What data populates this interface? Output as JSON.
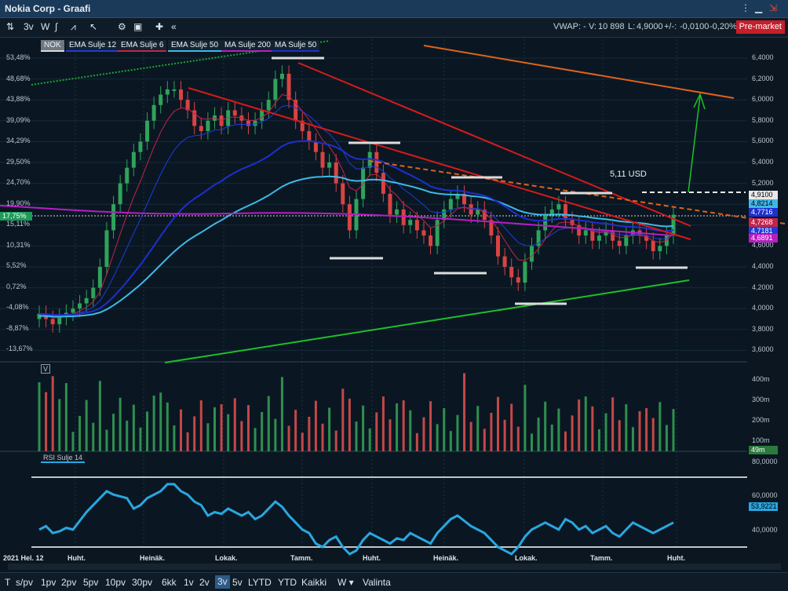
{
  "window": {
    "title": "Nokia Corp - Graafi"
  },
  "toolbar": {
    "period_3v": "3v",
    "period_w": "W",
    "vwap_label": "VWAP: -",
    "volume_label": "V:",
    "volume_value": "10 898",
    "last_label": "L:",
    "last_value": "4,9000",
    "change_label": "+/-:",
    "change_value": "-0,0100",
    "change_pct": "-0,20%",
    "premarket": "Pre-market"
  },
  "legend": [
    {
      "label": "NOK",
      "color": "#d9d9d9"
    },
    {
      "label": "EMA Sulje 12",
      "color": "#1e3bdc"
    },
    {
      "label": "EMA Sulje 6",
      "color": "#c2254b"
    },
    {
      "label": "EMA Sulje 50",
      "color": "#3fb8e6"
    },
    {
      "label": "MA Sulje 200",
      "color": "#b71ec2"
    },
    {
      "label": "MA Sulje 50",
      "color": "#1e2fcf"
    }
  ],
  "left_axis": [
    "53,48%",
    "48,68%",
    "43,88%",
    "39,09%",
    "34,29%",
    "29,50%",
    "24,70%",
    "19,90%",
    "15,11%",
    "10,31%",
    "5,52%",
    "0,72%",
    "-4,08%",
    "-8,87%",
    "-13,67%"
  ],
  "current_pct": "17,75%",
  "right_axis": [
    "6,4000",
    "6,2000",
    "6,0000",
    "5,8000",
    "5,6000",
    "5,4000",
    "5,2000",
    "5,0000",
    "4,8000",
    "4,6000",
    "4,4000",
    "4,2000",
    "4,0000",
    "3,8000",
    "3,6000"
  ],
  "price_tags": [
    {
      "value": "4,9100",
      "color": "#e8e8e8",
      "text": "#000000"
    },
    {
      "value": "4,8214",
      "color": "#3fb8e6",
      "text": "#000000"
    },
    {
      "value": "4,7716",
      "color": "#1e2fcf",
      "text": "#ffffff"
    },
    {
      "value": "4,7268",
      "color": "#c2254b",
      "text": "#ffffff"
    },
    {
      "value": "4,7181",
      "color": "#1e3bdc",
      "text": "#ffffff"
    },
    {
      "value": "4,6891",
      "color": "#b71ec2",
      "text": "#ffffff"
    }
  ],
  "annotation": {
    "target": "5,11 USD"
  },
  "volume_panel": {
    "label": "V",
    "axis": [
      "400m",
      "300m",
      "200m",
      "100m"
    ],
    "tag": "49m"
  },
  "rsi_panel": {
    "label": "RSI Sulje 14",
    "axis": [
      "80,0000",
      "60,0000",
      "40,0000"
    ],
    "tag": "53,9221"
  },
  "x_axis": [
    "2021 Hel. 12",
    "Huht.",
    "Heinäk.",
    "Lokak.",
    "Tamm.",
    "Huht.",
    "Heinäk.",
    "Lokak.",
    "Tamm.",
    "Huht."
  ],
  "bottom_bar": [
    "T",
    "s/pv",
    "1pv",
    "2pv",
    "5pv",
    "10pv",
    "30pv",
    "6kk",
    "1v",
    "2v",
    "3v",
    "5v",
    "LYTD",
    "YTD",
    "Kaikki",
    "W ▾",
    "Valinta"
  ],
  "bottom_active": "3v",
  "colors": {
    "up": "#2fa35a",
    "down": "#d94343",
    "rsi": "#29a7e0",
    "support": "#1fbf2b",
    "resist": "#d81a1a",
    "orange": "#e0621b"
  }
}
